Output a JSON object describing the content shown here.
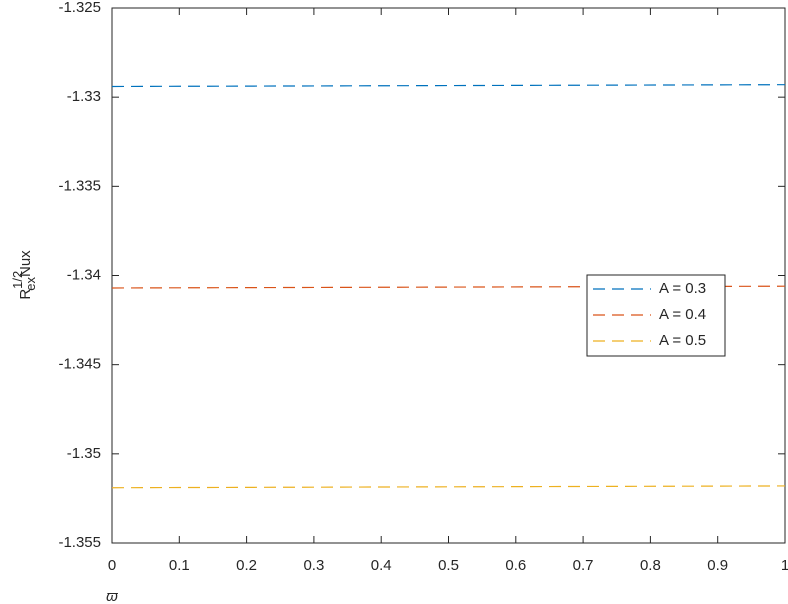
{
  "chart_data": {
    "type": "line",
    "x_label": "ϖ",
    "y_label": {
      "base": "R",
      "sub": "ex",
      "sup": "1/2",
      "rest": "Nux"
    },
    "x": [
      0,
      1
    ],
    "series": [
      {
        "name": "A = 0.3",
        "color": "#0072bd",
        "values": [
          -1.3294,
          -1.3293
        ]
      },
      {
        "name": "A = 0.4",
        "color": "#d95319",
        "values": [
          -1.3407,
          -1.3406
        ]
      },
      {
        "name": "A = 0.5",
        "color": "#edb120",
        "values": [
          -1.3519,
          -1.3518
        ]
      }
    ],
    "xlim": [
      0,
      1
    ],
    "xticks": [
      0,
      0.1,
      0.2,
      0.3,
      0.4,
      0.5,
      0.6,
      0.7,
      0.8,
      0.9,
      1
    ],
    "ylim": [
      -1.355,
      -1.325
    ],
    "yticks": [
      -1.355,
      -1.35,
      -1.345,
      -1.34,
      -1.335,
      -1.33,
      -1.325
    ],
    "grid": false,
    "line_style": "dashed",
    "legend_position": "east"
  }
}
